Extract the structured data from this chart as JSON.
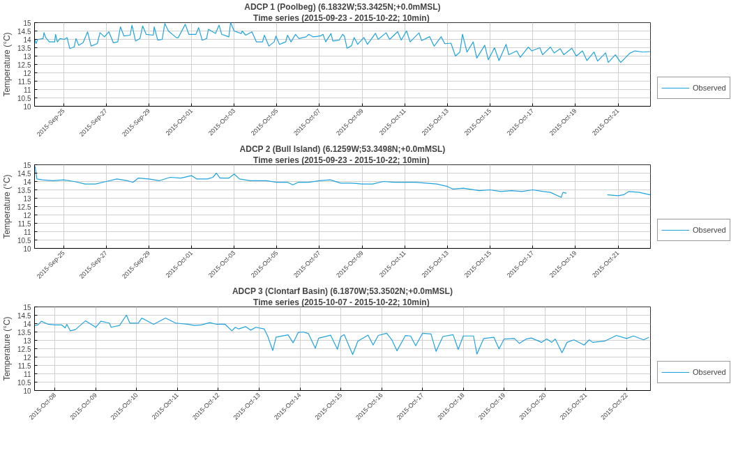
{
  "chart_data": [
    {
      "type": "line",
      "title": "ADCP 1 (Poolbeg) (6.1832W;53.3425N;+0.0mMSL)",
      "subtitle": "Time series  (2015-09-23 - 2015-10-22; 10min)",
      "ylabel": "Temperature (°C)",
      "x": [
        "2015-09-23T15:30",
        "2015-09-23T17:00",
        "2015-09-23T19:00",
        "2015-09-24T01:00",
        "2015-09-24T02:00",
        "2015-09-24T04:00",
        "2015-09-24T08:00",
        "2015-09-24T14:00",
        "2015-09-24T15:00",
        "2015-09-24T17:00",
        "2015-09-24T20:00",
        "2015-09-25T01:00",
        "2015-09-25T04:00",
        "2015-09-25T07:00",
        "2015-09-25T12:00",
        "2015-09-25T14:00",
        "2015-09-25T17:00",
        "2015-09-25T22:00",
        "2015-09-26T03:00",
        "2015-09-26T07:00",
        "2015-09-26T14:00",
        "2015-09-26T17:00",
        "2015-09-26T22:00",
        "2015-09-27T03:00",
        "2015-09-27T08:00",
        "2015-09-27T13:00",
        "2015-09-27T16:00",
        "2015-09-27T20:00",
        "2015-09-28T03:00",
        "2015-09-28T05:00",
        "2015-09-28T09:00",
        "2015-09-28T14:00",
        "2015-09-28T17:00",
        "2015-09-28T21:00",
        "2015-09-29T05:00",
        "2015-09-29T06:00",
        "2015-09-29T10:00",
        "2015-09-29T15:00",
        "2015-09-29T18:00",
        "2015-09-29T22:00",
        "2015-09-30T07:00",
        "2015-09-30T09:00",
        "2015-09-30T17:00",
        "2015-09-30T21:00",
        "2015-10-01T05:00",
        "2015-10-01T08:00",
        "2015-10-01T12:00",
        "2015-10-01T17:00",
        "2015-10-01T19:00",
        "2015-10-02T03:00",
        "2015-10-02T07:00",
        "2015-10-02T10:00",
        "2015-10-02T18:00",
        "2015-10-02T20:00",
        "2015-10-03T00:00",
        "2015-10-03T08:00",
        "2015-10-03T09:00",
        "2015-10-03T13:00",
        "2015-10-03T20:00",
        "2015-10-04T01:00",
        "2015-10-04T08:00",
        "2015-10-04T10:00",
        "2015-10-04T15:00",
        "2015-10-04T21:00",
        "2015-10-04T23:00",
        "2015-10-05T03:00",
        "2015-10-05T10:00",
        "2015-10-05T12:00",
        "2015-10-05T16:00",
        "2015-10-05T21:00",
        "2015-10-06T01:00",
        "2015-10-06T09:00",
        "2015-10-06T12:00",
        "2015-10-06T17:00",
        "2015-10-07T01:00",
        "2015-10-07T04:00",
        "2015-10-07T07:00",
        "2015-10-07T13:00",
        "2015-10-07T15:00",
        "2015-10-07T22:00",
        "2015-10-08T02:00",
        "2015-10-08T04:00",
        "2015-10-08T07:00",
        "2015-10-08T12:00",
        "2015-10-08T15:00",
        "2015-10-08T19:00",
        "2015-10-09T02:00",
        "2015-10-09T06:00",
        "2015-10-09T15:00",
        "2015-10-09T18:00",
        "2015-10-10T03:00",
        "2015-10-10T07:00",
        "2015-10-10T16:00",
        "2015-10-10T20:00",
        "2015-10-11T02:00",
        "2015-10-11T06:00",
        "2015-10-11T16:00",
        "2015-10-11T19:00",
        "2015-10-12T04:00",
        "2015-10-12T09:00",
        "2015-10-12T17:00",
        "2015-10-12T21:00",
        "2015-10-13T04:00",
        "2015-10-13T09:00",
        "2015-10-13T14:00",
        "2015-10-13T17:00",
        "2015-10-13T22:00",
        "2015-10-14T05:00",
        "2015-10-14T09:00",
        "2015-10-14T18:00",
        "2015-10-14T22:00",
        "2015-10-15T05:00",
        "2015-10-15T10:00",
        "2015-10-15T18:00",
        "2015-10-15T21:00",
        "2015-10-16T06:00",
        "2015-10-16T10:00",
        "2015-10-16T19:00",
        "2015-10-16T23:00",
        "2015-10-17T08:00",
        "2015-10-17T11:00",
        "2015-10-17T20:00",
        "2015-10-18T00:00",
        "2015-10-18T07:00",
        "2015-10-18T11:00",
        "2015-10-18T20:00",
        "2015-10-19T01:00",
        "2015-10-19T08:00",
        "2015-10-19T13:00",
        "2015-10-19T21:00",
        "2015-10-20T01:00",
        "2015-10-20T10:00",
        "2015-10-20T13:00",
        "2015-10-20T21:00",
        "2015-10-21T03:00",
        "2015-10-21T13:00",
        "2015-10-21T19:00",
        "2015-10-22T04:00",
        "2015-10-22T12:00"
      ],
      "series": [
        {
          "name": "Observed",
          "color": "#1fa3df",
          "values": [
            14.0,
            13.75,
            14.0,
            14.05,
            14.4,
            14.1,
            13.85,
            13.85,
            14.3,
            13.85,
            14.05,
            14.0,
            14.1,
            13.45,
            13.55,
            14.05,
            13.65,
            13.8,
            14.45,
            13.6,
            13.75,
            14.4,
            14.15,
            14.45,
            13.8,
            13.85,
            14.75,
            14.2,
            14.25,
            14.85,
            13.9,
            14.05,
            14.8,
            14.3,
            14.25,
            14.75,
            13.95,
            14.0,
            14.95,
            14.5,
            14.1,
            14.1,
            14.9,
            14.3,
            14.3,
            14.7,
            13.95,
            14.05,
            14.6,
            14.35,
            14.85,
            14.3,
            14.15,
            15.0,
            14.5,
            14.35,
            14.5,
            14.25,
            14.45,
            13.85,
            13.85,
            14.25,
            13.6,
            13.85,
            14.2,
            13.7,
            13.85,
            14.25,
            13.85,
            14.3,
            14.05,
            14.15,
            14.3,
            14.15,
            14.2,
            14.3,
            13.85,
            14.35,
            13.9,
            13.95,
            14.3,
            14.2,
            13.47,
            13.62,
            14.11,
            13.7,
            14.11,
            13.7,
            14.36,
            14.0,
            14.39,
            14.0,
            14.46,
            13.96,
            14.51,
            13.85,
            14.39,
            13.93,
            14.16,
            13.59,
            14.16,
            13.74,
            13.77,
            13.0,
            13.24,
            14.31,
            13.24,
            13.85,
            12.88,
            13.65,
            12.78,
            13.5,
            12.73,
            13.7,
            13.08,
            13.31,
            12.93,
            13.54,
            13.31,
            13.5,
            13.08,
            13.54,
            13.19,
            13.44,
            13.08,
            13.47,
            13.0,
            13.31,
            12.73,
            13.24,
            12.7,
            13.19,
            12.62,
            13.08,
            12.62,
            13.16,
            13.31,
            13.24,
            13.27
          ]
        }
      ],
      "xlim": [
        "2015-09-23T15:20",
        "2015-10-22T12:30"
      ],
      "ylim": [
        10,
        15
      ],
      "xticks": [
        {
          "value": "2015-09-25",
          "label": "2015-Sep-25"
        },
        {
          "value": "2015-09-27",
          "label": "2015-Sep-27"
        },
        {
          "value": "2015-09-29",
          "label": "2015-Sep-29"
        },
        {
          "value": "2015-10-01",
          "label": "2015-Oct-01"
        },
        {
          "value": "2015-10-03",
          "label": "2015-Oct-03"
        },
        {
          "value": "2015-10-05",
          "label": "2015-Oct-05"
        },
        {
          "value": "2015-10-07",
          "label": "2015-Oct-07"
        },
        {
          "value": "2015-10-09",
          "label": "2015-Oct-09"
        },
        {
          "value": "2015-10-11",
          "label": "2015-Oct-11"
        },
        {
          "value": "2015-10-13",
          "label": "2015-Oct-13"
        },
        {
          "value": "2015-10-15",
          "label": "2015-Oct-15"
        },
        {
          "value": "2015-10-17",
          "label": "2015-Oct-17"
        },
        {
          "value": "2015-10-19",
          "label": "2015-Oct-19"
        },
        {
          "value": "2015-10-21",
          "label": "2015-Oct-21"
        }
      ],
      "yticks": [
        10,
        10.5,
        11,
        11.5,
        12,
        12.5,
        13,
        13.5,
        14,
        14.5,
        15
      ],
      "grid": true,
      "legend": "bottom right"
    },
    {
      "type": "line",
      "title": "ADCP 2 (Bull Island) (6.1259W;53.3498N;+0.0mMSL)",
      "subtitle": "Time series  (2015-09-23 - 2015-10-22; 10min)",
      "ylabel": "Temperature (°C)",
      "x": [
        "2015-09-23T16:00",
        "2015-09-23T18:00",
        "2015-09-24T00:00",
        "2015-09-24T12:00",
        "2015-09-25T00:00",
        "2015-09-25T12:00",
        "2015-09-26T00:00",
        "2015-09-26T12:00",
        "2015-09-27T00:00",
        "2015-09-27T12:00",
        "2015-09-28T00:00",
        "2015-09-28T06:00",
        "2015-09-28T12:00",
        "2015-09-29T00:00",
        "2015-09-29T12:00",
        "2015-09-30T00:00",
        "2015-09-30T12:00",
        "2015-10-01T00:00",
        "2015-10-01T06:00",
        "2015-10-01T18:00",
        "2015-10-02T00:00",
        "2015-10-02T04:00",
        "2015-10-02T08:00",
        "2015-10-02T18:00",
        "2015-10-03T00:00",
        "2015-10-03T06:00",
        "2015-10-03T18:00",
        "2015-10-04T12:00",
        "2015-10-05T00:00",
        "2015-10-05T12:00",
        "2015-10-05T18:00",
        "2015-10-06T00:00",
        "2015-10-06T12:00",
        "2015-10-07T00:00",
        "2015-10-07T12:00",
        "2015-10-08T00:00",
        "2015-10-08T12:00",
        "2015-10-09T00:00",
        "2015-10-09T12:00",
        "2015-10-10T00:00",
        "2015-10-10T12:00",
        "2015-10-11T00:00",
        "2015-10-11T12:00",
        "2015-10-12T00:00",
        "2015-10-12T12:00",
        "2015-10-13T00:00",
        "2015-10-13T06:00",
        "2015-10-13T18:00",
        "2015-10-14T00:00",
        "2015-10-14T12:00",
        "2015-10-15T00:00",
        "2015-10-15T12:00",
        "2015-10-16T00:00",
        "2015-10-16T12:00",
        "2015-10-17T00:00",
        "2015-10-17T12:00",
        "2015-10-17T20:00",
        "2015-10-18T08:00",
        "2015-10-18T10:00",
        "2015-10-18T14:00",
        "2015-10-19T12:00",
        "2015-10-20T12:00",
        "2015-10-21T00:00",
        "2015-10-21T06:00",
        "2015-10-21T12:00",
        "2015-10-22T00:00",
        "2015-10-22T12:00"
      ],
      "series": [
        {
          "name": "Observed",
          "color": "#1fa3df",
          "values": [
            14.9,
            14.15,
            14.1,
            14.05,
            14.1,
            14.0,
            13.85,
            13.85,
            14.0,
            14.15,
            14.05,
            13.95,
            14.2,
            14.15,
            14.05,
            14.25,
            14.2,
            14.35,
            14.15,
            14.15,
            14.25,
            14.5,
            14.2,
            14.2,
            14.45,
            14.15,
            14.05,
            14.05,
            13.95,
            13.95,
            13.8,
            13.95,
            13.95,
            14.05,
            14.1,
            13.9,
            13.9,
            13.85,
            13.85,
            14.0,
            13.95,
            13.95,
            13.95,
            13.9,
            13.85,
            13.7,
            13.55,
            13.6,
            13.55,
            13.45,
            13.5,
            13.4,
            13.45,
            13.4,
            13.5,
            13.4,
            13.35,
            13.05,
            13.35,
            13.3,
            null,
            13.2,
            13.15,
            13.2,
            13.4,
            13.35,
            13.2
          ]
        }
      ],
      "xlim": [
        "2015-09-23T15:20",
        "2015-10-22T12:30"
      ],
      "ylim": [
        10,
        15
      ],
      "xticks": [
        {
          "value": "2015-09-25",
          "label": "2015-Sep-25"
        },
        {
          "value": "2015-09-27",
          "label": "2015-Sep-27"
        },
        {
          "value": "2015-09-29",
          "label": "2015-Sep-29"
        },
        {
          "value": "2015-10-01",
          "label": "2015-Oct-01"
        },
        {
          "value": "2015-10-03",
          "label": "2015-Oct-03"
        },
        {
          "value": "2015-10-05",
          "label": "2015-Oct-05"
        },
        {
          "value": "2015-10-07",
          "label": "2015-Oct-07"
        },
        {
          "value": "2015-10-09",
          "label": "2015-Oct-09"
        },
        {
          "value": "2015-10-11",
          "label": "2015-Oct-11"
        },
        {
          "value": "2015-10-13",
          "label": "2015-Oct-13"
        },
        {
          "value": "2015-10-15",
          "label": "2015-Oct-15"
        },
        {
          "value": "2015-10-17",
          "label": "2015-Oct-17"
        },
        {
          "value": "2015-10-19",
          "label": "2015-Oct-19"
        },
        {
          "value": "2015-10-21",
          "label": "2015-Oct-21"
        }
      ],
      "yticks": [
        10,
        10.5,
        11,
        11.5,
        12,
        12.5,
        13,
        13.5,
        14,
        14.5,
        15
      ],
      "grid": true,
      "legend": "bottom right"
    },
    {
      "type": "line",
      "title": "ADCP 3 (Clontarf Basin) (6.1870W;53.3502N;+0.0mMSL)",
      "subtitle": "Time series  (2015-10-07 - 2015-10-22; 10min)",
      "ylabel": "Temperature (°C)",
      "x": [
        "2015-10-07T12:00",
        "2015-10-07T14:00",
        "2015-10-07T16:00",
        "2015-10-07T20:00",
        "2015-10-08T00:00",
        "2015-10-08T04:00",
        "2015-10-08T06:00",
        "2015-10-08T07:00",
        "2015-10-08T09:00",
        "2015-10-08T12:00",
        "2015-10-08T18:00",
        "2015-10-09T00:00",
        "2015-10-09T03:00",
        "2015-10-09T08:00",
        "2015-10-09T09:00",
        "2015-10-09T14:00",
        "2015-10-09T18:00",
        "2015-10-09T20:00",
        "2015-10-10T01:00",
        "2015-10-10T03:00",
        "2015-10-10T10:00",
        "2015-10-10T17:00",
        "2015-10-10T23:00",
        "2015-10-11T06:00",
        "2015-10-11T10:00",
        "2015-10-11T14:00",
        "2015-10-11T19:00",
        "2015-10-11T23:00",
        "2015-10-12T04:00",
        "2015-10-12T08:00",
        "2015-10-12T10:00",
        "2015-10-12T12:00",
        "2015-10-12T16:00",
        "2015-10-12T19:00",
        "2015-10-12T22:00",
        "2015-10-13T03:00",
        "2015-10-13T05:00",
        "2015-10-13T08:00",
        "2015-10-13T10:00",
        "2015-10-13T17:00",
        "2015-10-13T20:00",
        "2015-10-13T23:00",
        "2015-10-14T02:00",
        "2015-10-14T05:00",
        "2015-10-14T09:00",
        "2015-10-14T11:00",
        "2015-10-14T18:00",
        "2015-10-14T22:00",
        "2015-10-15T00:00",
        "2015-10-15T02:00",
        "2015-10-15T07:00",
        "2015-10-15T10:00",
        "2015-10-15T16:00",
        "2015-10-15T19:00",
        "2015-10-15T22:00",
        "2015-10-16T03:00",
        "2015-10-16T06:00",
        "2015-10-16T09:00",
        "2015-10-16T14:00",
        "2015-10-16T17:00",
        "2015-10-16T20:00",
        "2015-10-17T00:00",
        "2015-10-17T05:00",
        "2015-10-17T08:00",
        "2015-10-17T12:00",
        "2015-10-17T18:00",
        "2015-10-17T21:00",
        "2015-10-18T00:00",
        "2015-10-18T06:00",
        "2015-10-18T08:00",
        "2015-10-18T12:00",
        "2015-10-18T18:00",
        "2015-10-18T21:00",
        "2015-10-19T00:00",
        "2015-10-19T06:00",
        "2015-10-19T09:00",
        "2015-10-19T13:00",
        "2015-10-19T16:00",
        "2015-10-19T22:00",
        "2015-10-20T01:00",
        "2015-10-20T04:00",
        "2015-10-20T06:00",
        "2015-10-20T10:00",
        "2015-10-20T13:00",
        "2015-10-20T17:00",
        "2015-10-20T23:00",
        "2015-10-21T02:00",
        "2015-10-21T04:00",
        "2015-10-21T11:00",
        "2015-10-21T18:00",
        "2015-10-22T00:00",
        "2015-10-22T04:00",
        "2015-10-22T10:00",
        "2015-10-22T13:00"
      ],
      "series": [
        {
          "name": "Observed",
          "color": "#1fa3df",
          "values": [
            13.89,
            13.92,
            14.14,
            13.96,
            13.92,
            13.92,
            13.75,
            13.96,
            13.57,
            13.64,
            14.17,
            13.78,
            14.14,
            14.03,
            13.78,
            13.89,
            14.51,
            14.03,
            14.03,
            14.33,
            13.96,
            14.33,
            14.03,
            13.96,
            13.89,
            13.92,
            14.06,
            13.96,
            13.96,
            13.57,
            13.78,
            13.68,
            13.82,
            13.61,
            13.78,
            13.68,
            13.26,
            12.39,
            13.19,
            13.33,
            12.85,
            13.47,
            13.5,
            13.4,
            12.53,
            13.13,
            13.31,
            12.47,
            13.22,
            13.34,
            12.15,
            12.95,
            13.31,
            12.72,
            13.29,
            13.42,
            13.03,
            12.37,
            13.29,
            13.26,
            12.68,
            13.42,
            13.38,
            12.34,
            13.23,
            13.34,
            12.46,
            13.26,
            13.26,
            12.18,
            13.11,
            13.18,
            12.49,
            13.08,
            13.11,
            12.82,
            13.08,
            13.14,
            12.88,
            13.08,
            12.88,
            13.08,
            12.26,
            12.88,
            13.03,
            12.72,
            13.03,
            12.88,
            12.95,
            13.29,
            13.11,
            13.26,
            13.03,
            13.18
          ]
        }
      ],
      "xlim": [
        "2015-10-07T12:00",
        "2015-10-22T14:00"
      ],
      "ylim": [
        10,
        15
      ],
      "xticks": [
        {
          "value": "2015-10-08",
          "label": "2015-Oct-08"
        },
        {
          "value": "2015-10-09",
          "label": "2015-Oct-09"
        },
        {
          "value": "2015-10-10",
          "label": "2015-Oct-10"
        },
        {
          "value": "2015-10-11",
          "label": "2015-Oct-11"
        },
        {
          "value": "2015-10-12",
          "label": "2015-Oct-12"
        },
        {
          "value": "2015-10-13",
          "label": "2015-Oct-13"
        },
        {
          "value": "2015-10-14",
          "label": "2015-Oct-14"
        },
        {
          "value": "2015-10-15",
          "label": "2015-Oct-15"
        },
        {
          "value": "2015-10-16",
          "label": "2015-Oct-16"
        },
        {
          "value": "2015-10-17",
          "label": "2015-Oct-17"
        },
        {
          "value": "2015-10-18",
          "label": "2015-Oct-18"
        },
        {
          "value": "2015-10-19",
          "label": "2015-Oct-19"
        },
        {
          "value": "2015-10-20",
          "label": "2015-Oct-20"
        },
        {
          "value": "2015-10-21",
          "label": "2015-Oct-21"
        },
        {
          "value": "2015-10-22",
          "label": "2015-Oct-22"
        }
      ],
      "yticks": [
        10,
        10.5,
        11,
        11.5,
        12,
        12.5,
        13,
        13.5,
        14,
        14.5,
        15
      ],
      "grid": true,
      "legend": "bottom right"
    }
  ]
}
